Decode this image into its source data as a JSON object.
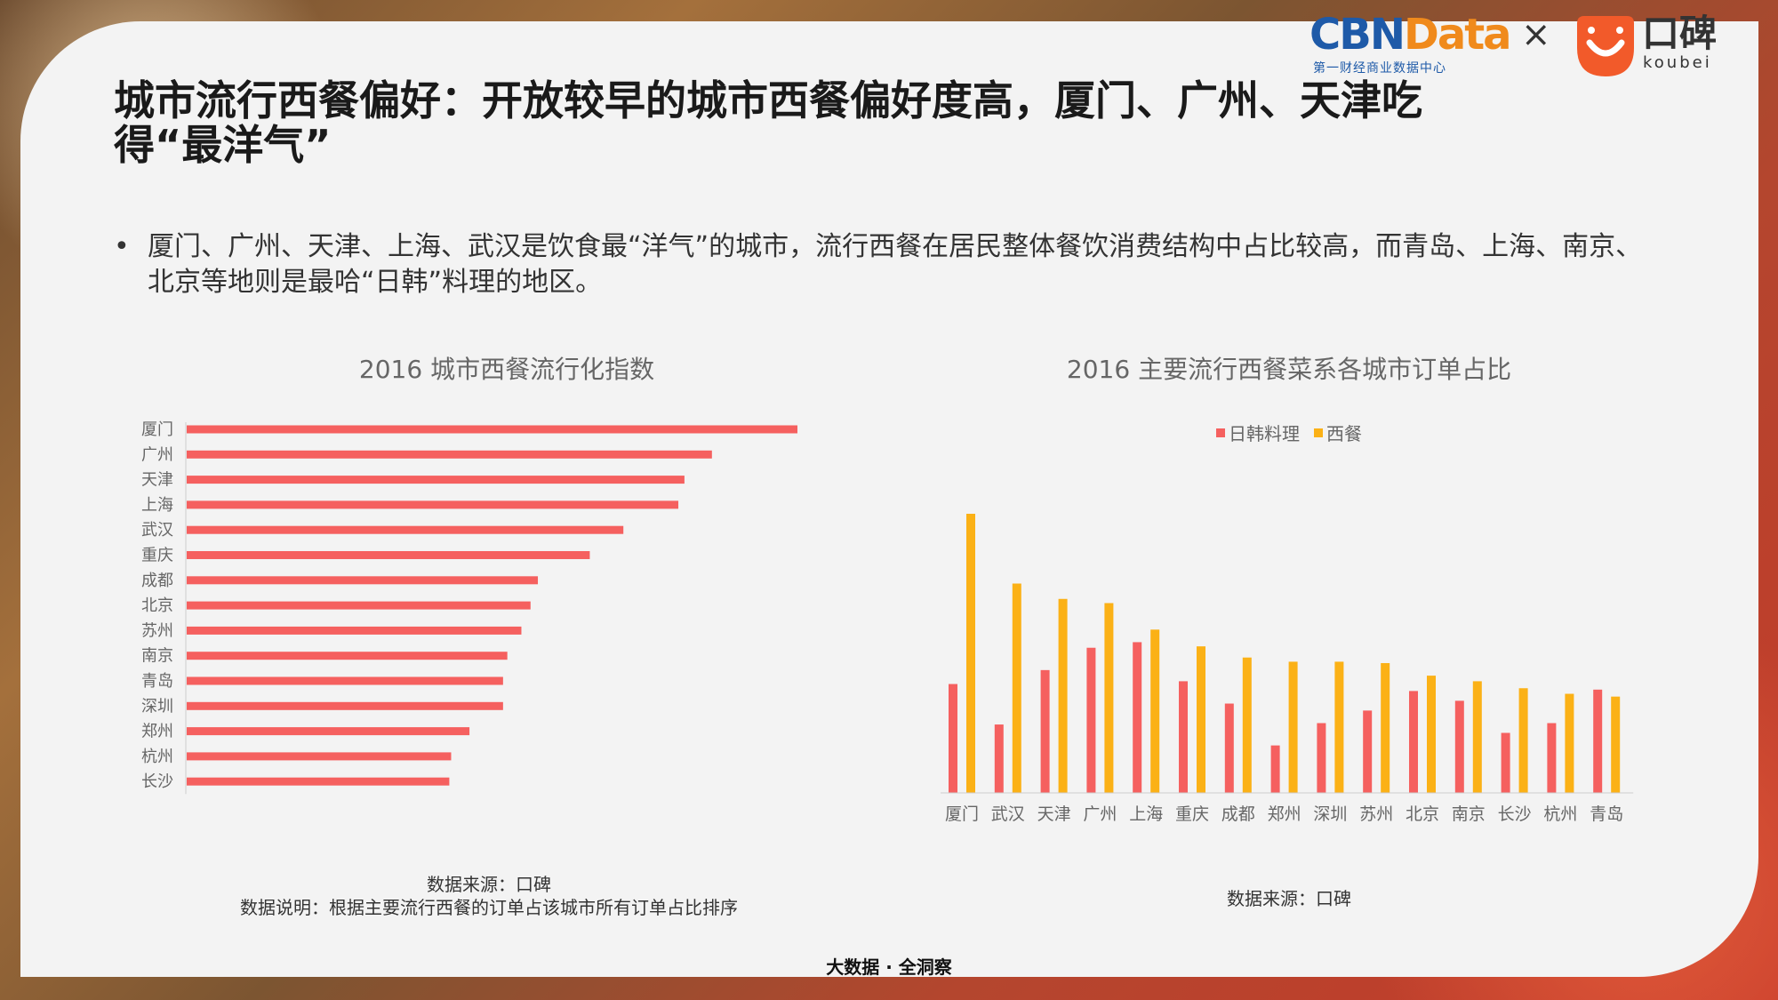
{
  "title": "城市流行西餐偏好：开放较早的城市西餐偏好度高，厦门、广州、天津吃得“最洋气”",
  "bullet": "厦门、广州、天津、上海、武汉是饮食最“洋气”的城市，流行西餐在居民整体餐饮消费结构中占比较高，而青岛、上海、南京、北京等地则是最哈“日韩”料理的地区。",
  "logos": {
    "cbn_main_a": "CBN",
    "cbn_main_b": "Data",
    "cbn_sub": "第一财经商业数据中心",
    "separator": "×",
    "koubei_name": "口碑",
    "koubei_sub": "koubei"
  },
  "colors": {
    "red": "#f5605f",
    "orange": "#fbb116"
  },
  "chart_data": [
    {
      "type": "bar",
      "orientation": "horizontal",
      "title": "2016 城市西餐流行化指数",
      "categories": [
        "厦门",
        "广州",
        "天津",
        "上海",
        "武汉",
        "重庆",
        "成都",
        "北京",
        "苏州",
        "南京",
        "青岛",
        "深圳",
        "郑州",
        "杭州",
        "长沙"
      ],
      "values": [
        100,
        86,
        81.5,
        80.5,
        71.5,
        66,
        57.5,
        56.3,
        54.8,
        52.5,
        51.8,
        51.8,
        46.3,
        43.3,
        43
      ],
      "xlabel": "",
      "ylabel": "",
      "xlim": [
        0,
        100
      ]
    },
    {
      "type": "bar",
      "title": "2016 主要流行西餐菜系各城市订单占比",
      "categories": [
        "厦门",
        "武汉",
        "天津",
        "广州",
        "上海",
        "重庆",
        "成都",
        "郑州",
        "深圳",
        "苏州",
        "北京",
        "南京",
        "长沙",
        "杭州",
        "青岛"
      ],
      "series": [
        {
          "name": "日韩料理",
          "values": [
            39,
            24.5,
            44,
            52,
            54,
            40,
            32,
            17,
            25,
            29.5,
            36.5,
            33,
            21.5,
            25,
            37
          ]
        },
        {
          "name": "西餐",
          "values": [
            100,
            75,
            69.5,
            68,
            58.5,
            52.5,
            48.5,
            47,
            47,
            46.5,
            42,
            40,
            37.5,
            35.5,
            34.5
          ]
        }
      ],
      "legend": "top-center",
      "ylim": [
        0,
        100
      ]
    }
  ],
  "notes": {
    "chart1_source": "数据来源：口碑",
    "chart1_desc": "数据说明：根据主要流行西餐的订单占该城市所有订单占比排序",
    "chart2_source": "数据来源：口碑"
  },
  "footer": "大数据 · 全洞察"
}
